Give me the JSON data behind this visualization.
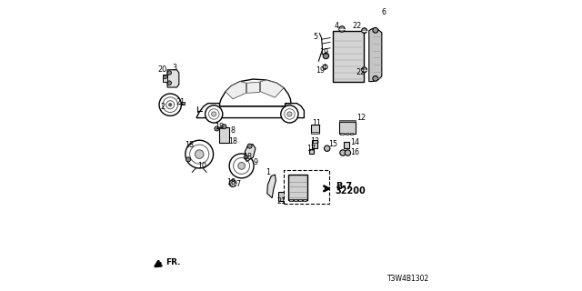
{
  "bg_color": "#ffffff",
  "diagram_code": "T3W4B1302",
  "ref": "B-7",
  "ref_num": "32200",
  "fr_label": "FR."
}
